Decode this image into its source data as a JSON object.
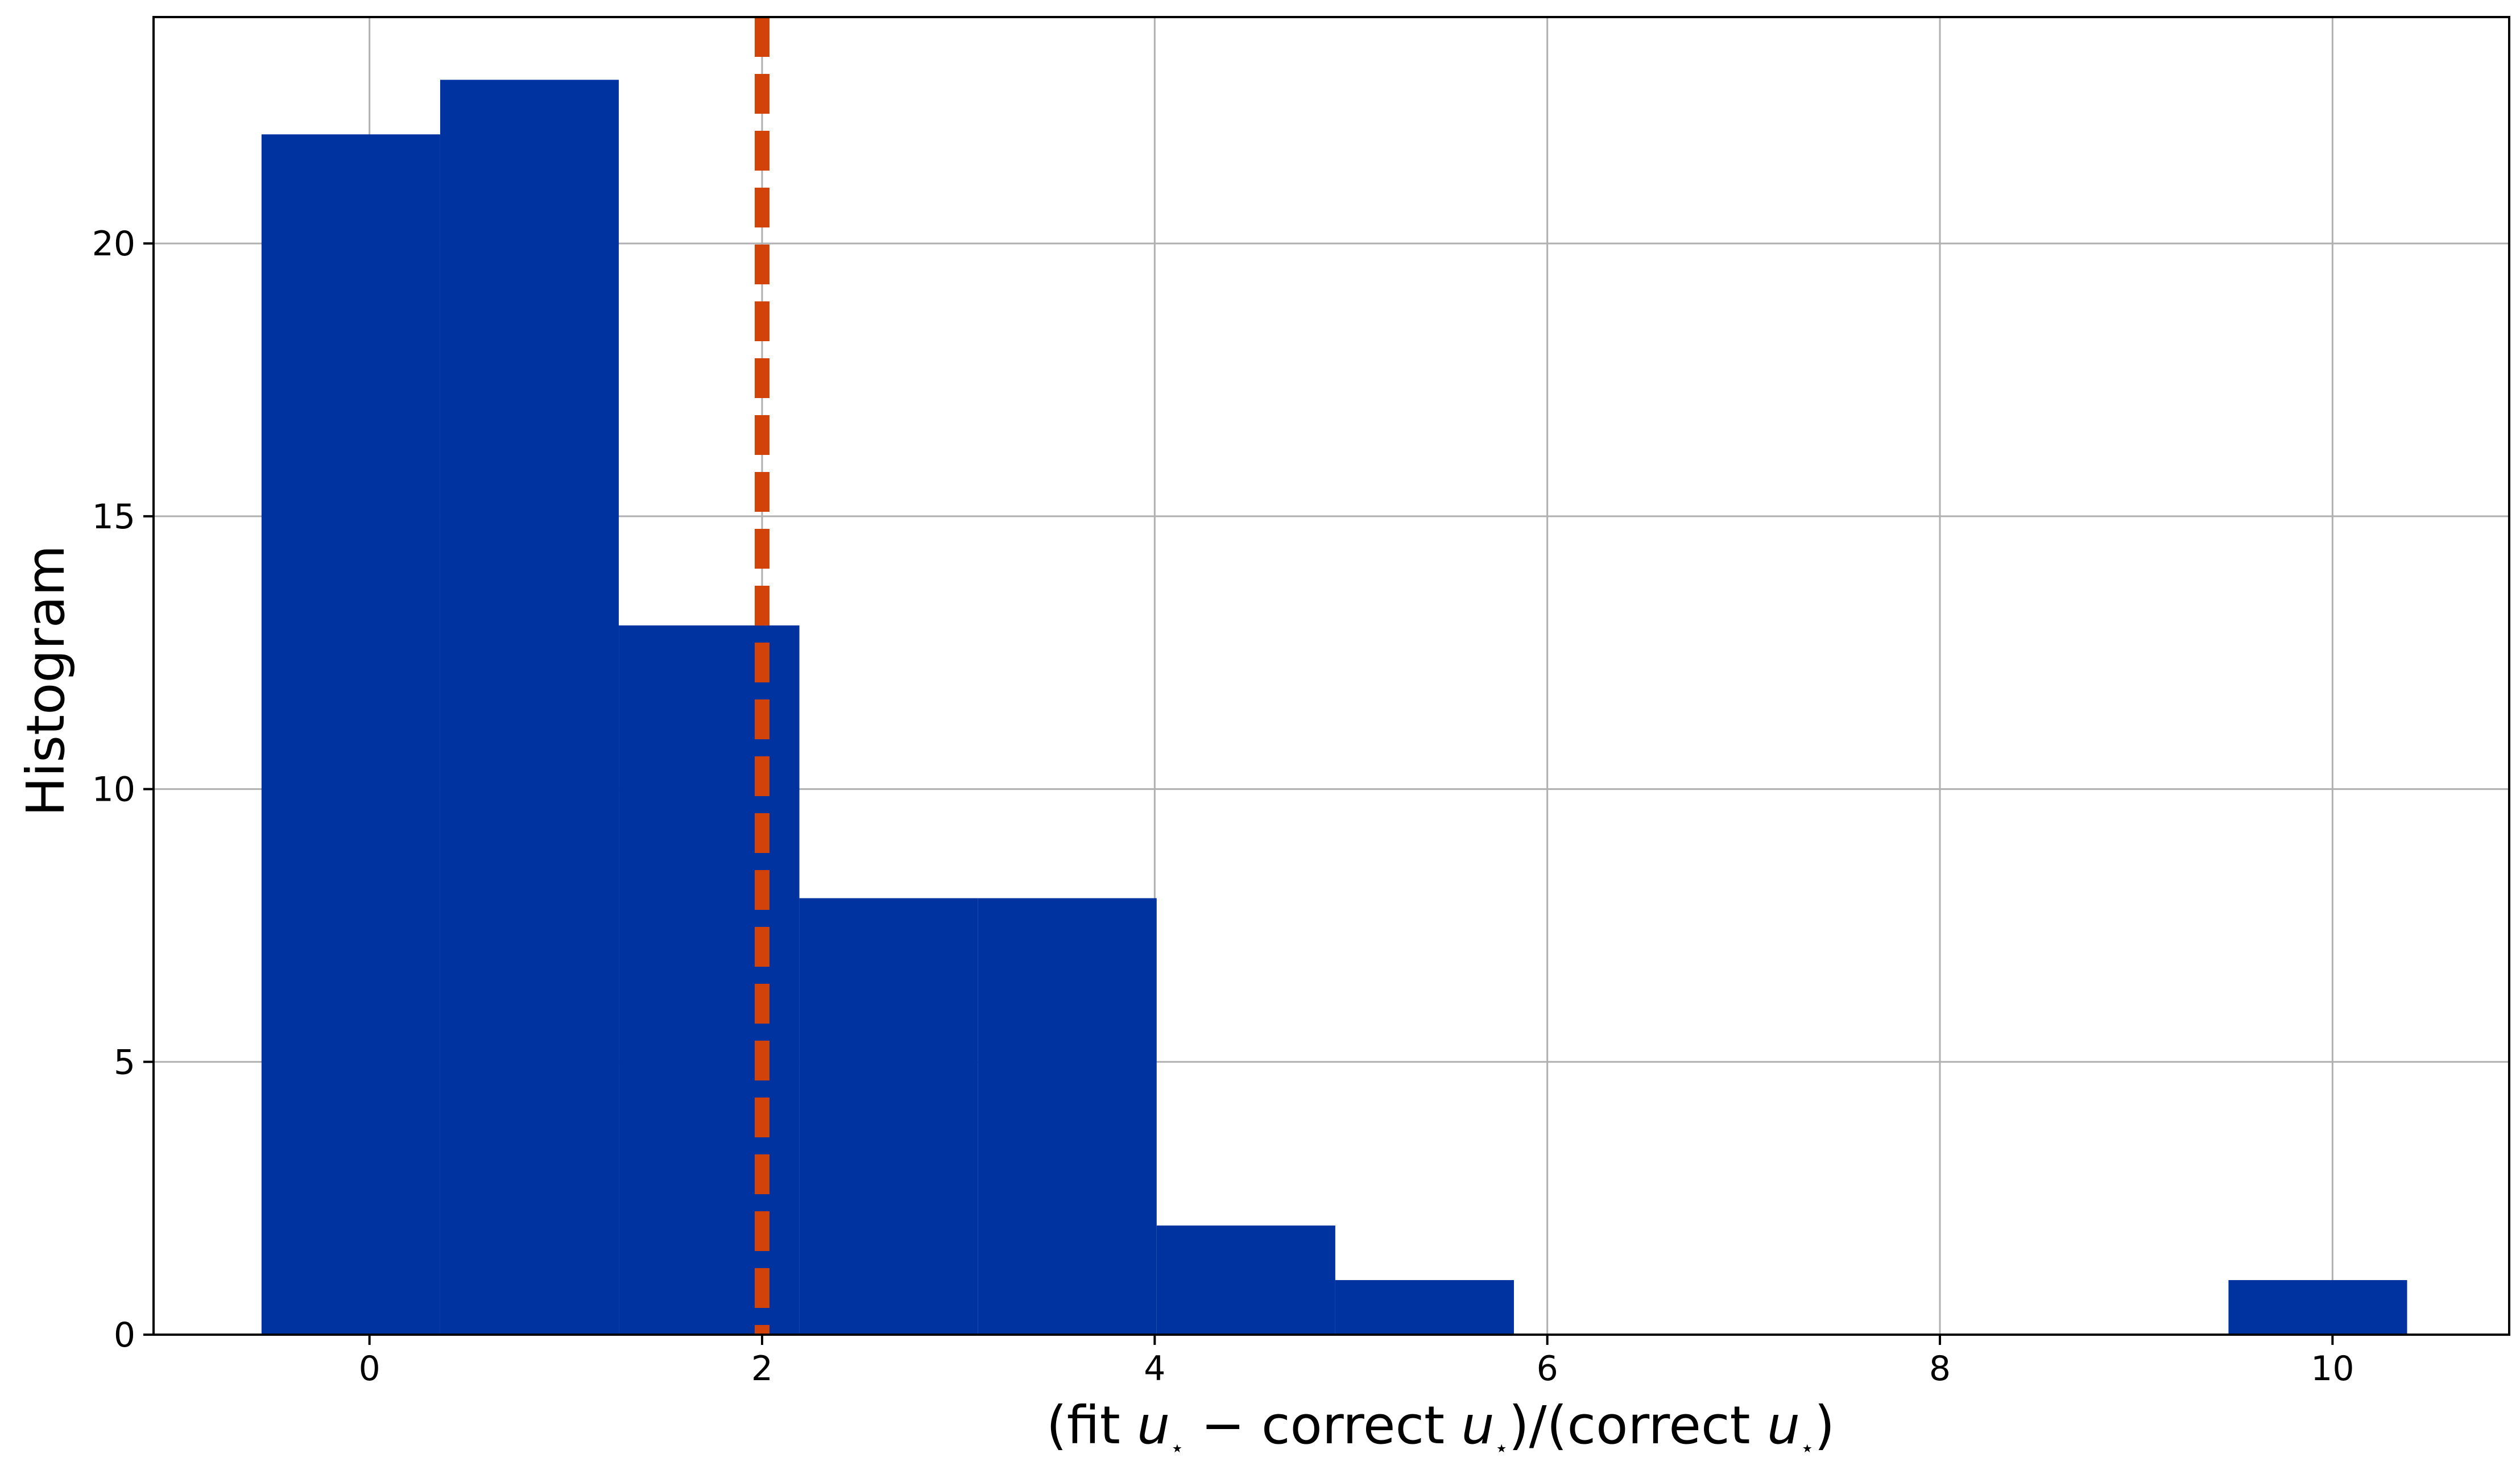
{
  "chart_data": {
    "type": "bar",
    "subtype": "histogram",
    "xlabel": "(fit u⋆ − correct u⋆)/(correct u⋆)",
    "xlabel_parts": {
      "p1": "(fit ",
      "u1": "u",
      "s1": "⋆",
      "p2": " − correct ",
      "u2": "u",
      "s2": "⋆",
      "p3": ")/(correct ",
      "u3": "u",
      "s3": "⋆",
      "p4": ")"
    },
    "ylabel": "Histogram",
    "xlim": [
      -1.1,
      10.9
    ],
    "ylim": [
      0,
      24.15
    ],
    "grid": true,
    "bins": [
      {
        "x0": -0.55,
        "x1": 0.36,
        "count": 22
      },
      {
        "x0": 0.36,
        "x1": 1.27,
        "count": 23
      },
      {
        "x0": 1.27,
        "x1": 2.19,
        "count": 13
      },
      {
        "x0": 2.19,
        "x1": 3.1,
        "count": 8
      },
      {
        "x0": 3.1,
        "x1": 4.01,
        "count": 8
      },
      {
        "x0": 4.01,
        "x1": 4.92,
        "count": 2
      },
      {
        "x0": 4.92,
        "x1": 5.83,
        "count": 1
      },
      {
        "x0": 5.83,
        "x1": 6.74,
        "count": 0
      },
      {
        "x0": 6.74,
        "x1": 7.65,
        "count": 0
      },
      {
        "x0": 7.65,
        "x1": 8.56,
        "count": 0
      },
      {
        "x0": 8.56,
        "x1": 9.47,
        "count": 0
      },
      {
        "x0": 9.47,
        "x1": 10.38,
        "count": 1
      }
    ],
    "x_ticks": [
      0,
      2,
      4,
      6,
      8,
      10
    ],
    "y_ticks": [
      0,
      5,
      10,
      15,
      20
    ],
    "vline": {
      "x": 2,
      "style": "dashed"
    },
    "colors": {
      "bar": "#0033A0",
      "vline": "#D2430A",
      "grid": "#B0B0B0",
      "axes": "#000000"
    }
  }
}
